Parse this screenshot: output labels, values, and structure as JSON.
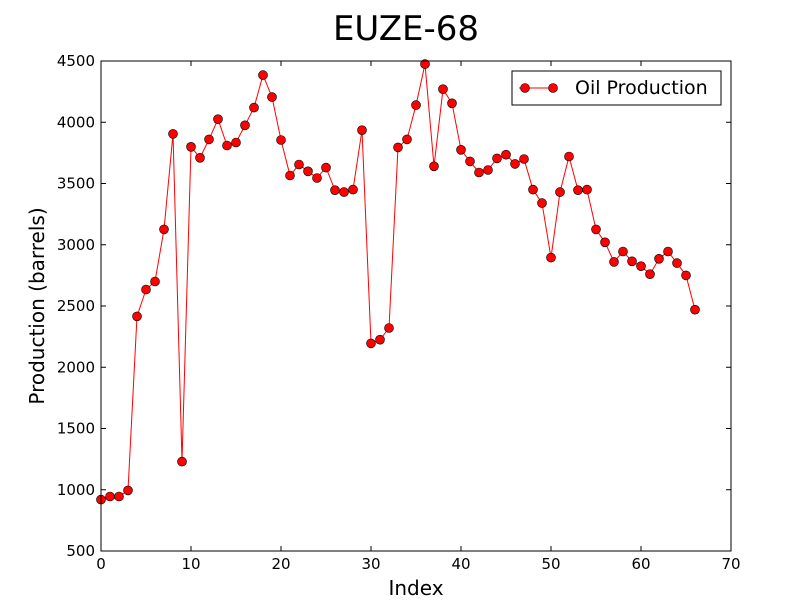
{
  "chart_data": {
    "type": "line",
    "title": "EUZE-68",
    "xlabel": "Index",
    "ylabel": "Production (barrels)",
    "xlim": [
      0,
      70
    ],
    "ylim": [
      500,
      4500
    ],
    "xticks": [
      "0",
      "10",
      "20",
      "30",
      "40",
      "50",
      "60",
      "70"
    ],
    "yticks": [
      "500",
      "1000",
      "1500",
      "2000",
      "2500",
      "3000",
      "3500",
      "4000",
      "4500"
    ],
    "grid": false,
    "legend_position": "top-right",
    "series": [
      {
        "name": "Oil Production",
        "color": "#ff0000",
        "marker": "circle",
        "x": [
          0,
          1,
          2,
          3,
          4,
          5,
          6,
          7,
          8,
          9,
          10,
          11,
          12,
          13,
          14,
          15,
          16,
          17,
          18,
          19,
          20,
          21,
          22,
          23,
          24,
          25,
          26,
          27,
          28,
          29,
          30,
          31,
          32,
          33,
          34,
          35,
          36,
          37,
          38,
          39,
          40,
          41,
          42,
          43,
          44,
          45,
          46,
          47,
          48,
          49,
          50,
          51,
          52,
          53,
          54,
          55,
          56,
          57,
          58,
          59,
          60,
          61,
          62,
          63,
          64,
          65,
          66
        ],
        "values": [
          920,
          945,
          945,
          995,
          2415,
          2635,
          2700,
          3125,
          3905,
          1230,
          3800,
          3710,
          3860,
          4025,
          3810,
          3835,
          3975,
          4120,
          4385,
          4205,
          3855,
          3565,
          3655,
          3600,
          3545,
          3630,
          3445,
          3430,
          3450,
          3935,
          2195,
          2225,
          2320,
          3795,
          3860,
          4140,
          4475,
          3640,
          4270,
          4155,
          3775,
          3680,
          3590,
          3610,
          3705,
          3735,
          3660,
          3700,
          3450,
          3340,
          2895,
          3430,
          3720,
          3445,
          3450,
          3125,
          3020,
          2860,
          2945,
          2865,
          2825,
          2760,
          2885,
          2945,
          2850,
          2750,
          2470
        ]
      }
    ]
  }
}
